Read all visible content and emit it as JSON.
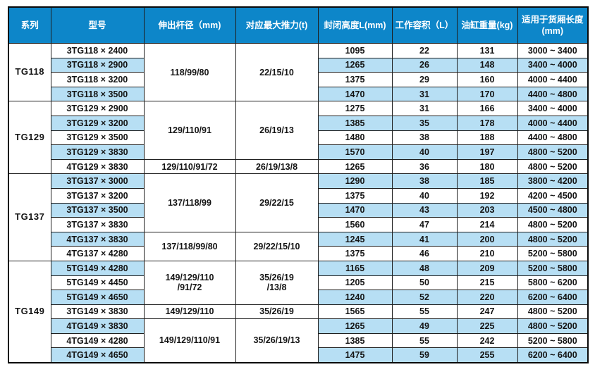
{
  "colors": {
    "header_bg": "#0d86c9",
    "stripe_bg": "#b7dff4",
    "border": "#1e1e1e",
    "header_text": "#ffffff",
    "body_text": "#141414"
  },
  "table": {
    "columns": [
      {
        "name": "series",
        "label": "系列"
      },
      {
        "name": "model",
        "label": "型号"
      },
      {
        "name": "rod-diameter",
        "label": "伸出杆径（mm)"
      },
      {
        "name": "max-thrust",
        "label": "对应最大推力(t)"
      },
      {
        "name": "closed-height",
        "label": "封闭高度L(mm)"
      },
      {
        "name": "working-volume",
        "label": "工作容积（L）"
      },
      {
        "name": "cylinder-weight",
        "label": "油缸重量(kg)"
      },
      {
        "name": "cargo-length",
        "label": "适用于货厢长度\n(mm)"
      }
    ],
    "rows": [
      [
        {
          "t": "TG118",
          "rs": 4
        },
        {
          "t": "3TG118 × 2400"
        },
        {
          "t": "118/99/80",
          "rs": 4
        },
        {
          "t": "22/15/10",
          "rs": 4
        },
        {
          "t": "1095"
        },
        {
          "t": "22"
        },
        {
          "t": "131"
        },
        {
          "t": "3000 ~ 3400"
        }
      ],
      [
        {
          "t": "3TG118 × 2900"
        },
        {
          "t": "1265"
        },
        {
          "t": "26"
        },
        {
          "t": "148"
        },
        {
          "t": "3400 ~ 4000"
        }
      ],
      [
        {
          "t": "3TG118 × 3200"
        },
        {
          "t": "1375"
        },
        {
          "t": "29"
        },
        {
          "t": "160"
        },
        {
          "t": "4000 ~ 4400"
        }
      ],
      [
        {
          "t": "3TG118 × 3500"
        },
        {
          "t": "1470"
        },
        {
          "t": "31"
        },
        {
          "t": "170"
        },
        {
          "t": "4400 ~ 4800"
        }
      ],
      [
        {
          "t": "TG129",
          "rs": 5
        },
        {
          "t": "3TG129 × 2900"
        },
        {
          "t": "129/110/91",
          "rs": 4
        },
        {
          "t": "26/19/13",
          "rs": 4
        },
        {
          "t": "1275"
        },
        {
          "t": "31"
        },
        {
          "t": "166"
        },
        {
          "t": "3400 ~ 4000"
        }
      ],
      [
        {
          "t": "3TG129 × 3200"
        },
        {
          "t": "1385"
        },
        {
          "t": "35"
        },
        {
          "t": "178"
        },
        {
          "t": "4000 ~ 4400"
        }
      ],
      [
        {
          "t": "3TG129 × 3500"
        },
        {
          "t": "1480"
        },
        {
          "t": "38"
        },
        {
          "t": "188"
        },
        {
          "t": "4400 ~ 4800"
        }
      ],
      [
        {
          "t": "3TG129 × 3830"
        },
        {
          "t": "1570"
        },
        {
          "t": "40"
        },
        {
          "t": "197"
        },
        {
          "t": "4800 ~ 5200"
        }
      ],
      [
        {
          "t": "4TG129 × 3830"
        },
        {
          "t": "129/110/91/72"
        },
        {
          "t": "26/19/13/8"
        },
        {
          "t": "1265"
        },
        {
          "t": "36"
        },
        {
          "t": "180"
        },
        {
          "t": "4800 ~ 5200"
        }
      ],
      [
        {
          "t": "TG137",
          "rs": 6
        },
        {
          "t": "3TG137 × 3000"
        },
        {
          "t": "137/118/99",
          "rs": 4
        },
        {
          "t": "29/22/15",
          "rs": 4
        },
        {
          "t": "1290"
        },
        {
          "t": "38"
        },
        {
          "t": "185"
        },
        {
          "t": "3800 ~ 4200"
        }
      ],
      [
        {
          "t": "3TG137 × 3200"
        },
        {
          "t": "1375"
        },
        {
          "t": "40"
        },
        {
          "t": "192"
        },
        {
          "t": "4200 ~ 4500"
        }
      ],
      [
        {
          "t": "3TG137 × 3500"
        },
        {
          "t": "1470"
        },
        {
          "t": "43"
        },
        {
          "t": "203"
        },
        {
          "t": "4500 ~ 4800"
        }
      ],
      [
        {
          "t": "3TG137 × 3830"
        },
        {
          "t": "1560"
        },
        {
          "t": "47"
        },
        {
          "t": "214"
        },
        {
          "t": "4800 ~ 5200"
        }
      ],
      [
        {
          "t": "4TG137 × 3830"
        },
        {
          "t": "137/118/99/80",
          "rs": 2
        },
        {
          "t": "29/22/15/10",
          "rs": 2
        },
        {
          "t": "1245"
        },
        {
          "t": "41"
        },
        {
          "t": "200"
        },
        {
          "t": "4800 ~ 5200"
        }
      ],
      [
        {
          "t": "4TG137 × 4280"
        },
        {
          "t": "1375"
        },
        {
          "t": "46"
        },
        {
          "t": "210"
        },
        {
          "t": "5200 ~ 5800"
        }
      ],
      [
        {
          "t": "TG149",
          "rs": 7
        },
        {
          "t": "5TG149 × 4280"
        },
        {
          "t": "149/129/110\n/91/72",
          "rs": 3
        },
        {
          "t": "35/26/19\n/13/8",
          "rs": 3
        },
        {
          "t": "1165"
        },
        {
          "t": "48"
        },
        {
          "t": "209"
        },
        {
          "t": "5200 ~ 5800"
        }
      ],
      [
        {
          "t": "5TG149 × 4450"
        },
        {
          "t": "1205"
        },
        {
          "t": "50"
        },
        {
          "t": "215"
        },
        {
          "t": "5800 ~ 6200"
        }
      ],
      [
        {
          "t": "5TG149 × 4650"
        },
        {
          "t": "1240"
        },
        {
          "t": "52"
        },
        {
          "t": "220"
        },
        {
          "t": "6200 ~ 6400"
        }
      ],
      [
        {
          "t": "3TG149 × 3830"
        },
        {
          "t": "149/129/110"
        },
        {
          "t": "35/26/19"
        },
        {
          "t": "1565"
        },
        {
          "t": "55"
        },
        {
          "t": "247"
        },
        {
          "t": "4800 ~ 5200"
        }
      ],
      [
        {
          "t": "4TG149 × 3830"
        },
        {
          "t": "149/129/110/91",
          "rs": 3
        },
        {
          "t": "35/26/19/13",
          "rs": 3
        },
        {
          "t": "1265"
        },
        {
          "t": "49"
        },
        {
          "t": "225"
        },
        {
          "t": "4800 ~ 5200"
        }
      ],
      [
        {
          "t": "4TG149 × 4280"
        },
        {
          "t": "1385"
        },
        {
          "t": "55"
        },
        {
          "t": "242"
        },
        {
          "t": "5200 ~ 5800"
        }
      ],
      [
        {
          "t": "4TG149 × 4650"
        },
        {
          "t": "1475"
        },
        {
          "t": "59"
        },
        {
          "t": "255"
        },
        {
          "t": "6200 ~ 6400"
        }
      ]
    ]
  }
}
